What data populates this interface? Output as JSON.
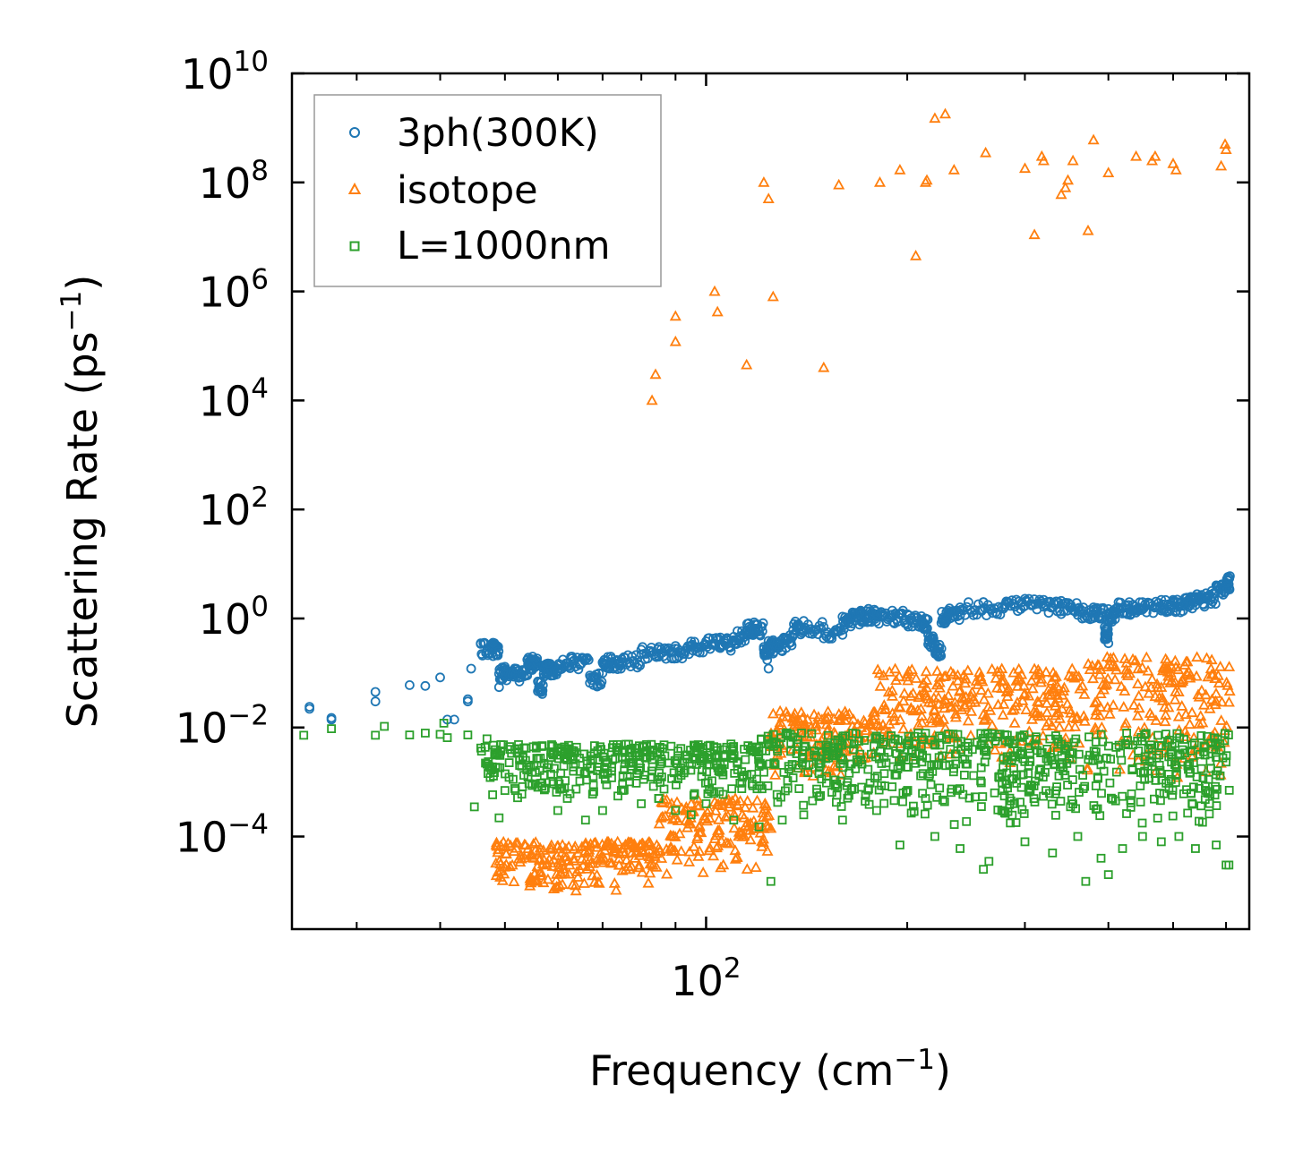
{
  "chart_data": {
    "type": "scatter",
    "xscale": "log",
    "yscale": "log",
    "xlim": [
      24,
      650
    ],
    "ylim": [
      2e-06,
      10000000000
    ],
    "xlabel": {
      "text": "Frequency (cm",
      "sup": "−1",
      "suffix": ")"
    },
    "ylabel": {
      "text": "Scattering Rate (ps",
      "sup": "−1",
      "suffix": ")"
    },
    "x_ticks": [
      {
        "value": 100,
        "base": "10",
        "exp": "2"
      }
    ],
    "y_ticks": [
      {
        "value": 0.0001,
        "base": "10",
        "exp": "−4"
      },
      {
        "value": 0.01,
        "base": "10",
        "exp": "−2"
      },
      {
        "value": 1,
        "base": "10",
        "exp": "0"
      },
      {
        "value": 100,
        "base": "10",
        "exp": "2"
      },
      {
        "value": 10000,
        "base": "10",
        "exp": "4"
      },
      {
        "value": 1000000,
        "base": "10",
        "exp": "6"
      },
      {
        "value": 100000000,
        "base": "10",
        "exp": "8"
      },
      {
        "value": 10000000000,
        "base": "10",
        "exp": "10"
      }
    ],
    "legend_position": "top-left",
    "series": [
      {
        "name": "3ph(300K)",
        "marker": "circle",
        "color": "#1f77b4",
        "points": [
          [
            25.5,
            0.022
          ],
          [
            25.5,
            0.024
          ],
          [
            27.5,
            0.014
          ],
          [
            27.5,
            0.015
          ],
          [
            32,
            0.03
          ],
          [
            32,
            0.045
          ],
          [
            36,
            0.06
          ],
          [
            38,
            0.058
          ],
          [
            40,
            0.083
          ],
          [
            41,
            0.014
          ],
          [
            42,
            0.014
          ],
          [
            44,
            0.03
          ],
          [
            44,
            0.033
          ],
          [
            44.5,
            0.12
          ],
          [
            46,
            0.35
          ],
          [
            48,
            0.36
          ],
          [
            49,
            0.055
          ],
          [
            50,
            0.13
          ],
          [
            52,
            0.12
          ],
          [
            54,
            0.09
          ],
          [
            55,
            0.2
          ],
          [
            56,
            0.07
          ],
          [
            57,
            0.06
          ],
          [
            58,
            0.15
          ],
          [
            60,
            0.11
          ],
          [
            63,
            0.2
          ],
          [
            67,
            0.09
          ],
          [
            70,
            0.1
          ],
          [
            72,
            0.2
          ],
          [
            75,
            0.15
          ],
          [
            80,
            0.22
          ],
          [
            85,
            0.3
          ],
          [
            90,
            0.28
          ],
          [
            95,
            0.32
          ],
          [
            100,
            0.38
          ],
          [
            105,
            0.45
          ],
          [
            110,
            0.4
          ],
          [
            115,
            0.6
          ],
          [
            118,
            0.85
          ],
          [
            122,
            0.3
          ],
          [
            124,
            0.12
          ],
          [
            126,
            0.4
          ],
          [
            130,
            0.25
          ],
          [
            135,
            0.5
          ],
          [
            140,
            0.9
          ],
          [
            150,
            0.7
          ],
          [
            160,
            0.5
          ],
          [
            165,
            1.1
          ],
          [
            170,
            1.3
          ],
          [
            175,
            1.5
          ],
          [
            180,
            1.2
          ],
          [
            190,
            1.4
          ],
          [
            200,
            1.2
          ],
          [
            210,
            1.1
          ],
          [
            215,
            0.5
          ],
          [
            220,
            0.35
          ],
          [
            225,
            0.28
          ],
          [
            230,
            1.4
          ],
          [
            240,
            1.6
          ],
          [
            260,
            2.0
          ],
          [
            280,
            1.8
          ],
          [
            300,
            2.3
          ],
          [
            320,
            2.2
          ],
          [
            340,
            2.1
          ],
          [
            360,
            1.5
          ],
          [
            380,
            1.6
          ],
          [
            395,
            0.7
          ],
          [
            400,
            0.35
          ],
          [
            410,
            1.5
          ],
          [
            430,
            2.0
          ],
          [
            450,
            2.0
          ],
          [
            480,
            2.2
          ],
          [
            500,
            2.2
          ],
          [
            520,
            2.3
          ],
          [
            540,
            2.5
          ],
          [
            560,
            2.9
          ],
          [
            580,
            3.2
          ],
          [
            600,
            4.5
          ],
          [
            608,
            6.0
          ]
        ]
      },
      {
        "name": "isotope",
        "marker": "triangle",
        "color": "#ff7f0e",
        "points": [
          [
            83,
            10000
          ],
          [
            84,
            30000
          ],
          [
            90,
            120000
          ],
          [
            90,
            350000
          ],
          [
            103,
            1000000
          ],
          [
            104,
            420000
          ],
          [
            115,
            45000
          ],
          [
            122,
            100000000
          ],
          [
            124,
            50000000
          ],
          [
            126,
            800000
          ],
          [
            150,
            40000
          ],
          [
            158,
            90000000
          ],
          [
            182,
            100000000
          ],
          [
            195,
            170000000
          ],
          [
            206,
            4500000
          ],
          [
            213,
            100000000
          ],
          [
            214,
            110000000
          ],
          [
            220,
            1500000000
          ],
          [
            228,
            1800000000
          ],
          [
            235,
            170000000
          ],
          [
            262,
            350000000
          ],
          [
            300,
            180000000
          ],
          [
            310,
            11000000
          ],
          [
            318,
            300000000
          ],
          [
            320,
            250000000
          ],
          [
            340,
            60000000
          ],
          [
            345,
            80000000
          ],
          [
            348,
            110000000
          ],
          [
            354,
            250000000
          ],
          [
            373,
            13000000
          ],
          [
            380,
            600000000
          ],
          [
            400,
            150000000
          ],
          [
            440,
            300000000
          ],
          [
            465,
            250000000
          ],
          [
            470,
            300000000
          ],
          [
            500,
            220000000
          ],
          [
            505,
            170000000
          ],
          [
            590,
            200000000
          ],
          [
            598,
            500000000
          ],
          [
            600,
            400000000
          ]
        ],
        "bands": [
          {
            "x_start": 48,
            "x_end": 85,
            "y_low": 1e-05,
            "y_high": 8e-05
          },
          {
            "x_start": 85,
            "x_end": 125,
            "y_low": 2e-05,
            "y_high": 0.0005
          },
          {
            "x_start": 125,
            "x_end": 180,
            "y_low": 0.001,
            "y_high": 0.02
          },
          {
            "x_start": 180,
            "x_end": 370,
            "y_low": 0.002,
            "y_high": 0.12
          },
          {
            "x_start": 370,
            "x_end": 608,
            "y_low": 0.001,
            "y_high": 0.2
          }
        ]
      },
      {
        "name": "L=1000nm",
        "marker": "square",
        "color": "#2ca02c",
        "points": [
          [
            25,
            0.0072
          ],
          [
            27.5,
            0.0095
          ],
          [
            32,
            0.0072
          ],
          [
            33,
            0.0105
          ],
          [
            36,
            0.0073
          ],
          [
            38,
            0.0079
          ],
          [
            40,
            0.0075
          ],
          [
            40.5,
            0.012
          ],
          [
            41,
            0.0065
          ],
          [
            44,
            0.0073
          ],
          [
            45,
            0.00035
          ],
          [
            47,
            0.0062
          ],
          [
            49,
            0.00022
          ],
          [
            50,
            0.0007
          ],
          [
            53,
            0.0006
          ],
          [
            56,
            0.0008
          ],
          [
            60,
            0.0003
          ],
          [
            62,
            0.0005
          ],
          [
            66,
            0.0002
          ],
          [
            70,
            0.0003
          ],
          [
            75,
            0.0009
          ],
          [
            80,
            0.0004
          ],
          [
            85,
            0.0005
          ],
          [
            90,
            0.0003
          ],
          [
            95,
            0.00025
          ],
          [
            100,
            0.0004
          ],
          [
            110,
            0.0002
          ],
          [
            120,
            0.00015
          ],
          [
            125,
            1.5e-05
          ],
          [
            130,
            0.0002
          ],
          [
            140,
            0.00025
          ],
          [
            160,
            0.0002
          ],
          [
            180,
            0.0003
          ],
          [
            195,
            7e-05
          ],
          [
            220,
            0.0001
          ],
          [
            240,
            6e-05
          ],
          [
            260,
            2.5e-05
          ],
          [
            265,
            3.5e-05
          ],
          [
            300,
            8e-05
          ],
          [
            330,
            5e-05
          ],
          [
            360,
            0.0001
          ],
          [
            370,
            1.5e-05
          ],
          [
            390,
            4e-05
          ],
          [
            400,
            2e-05
          ],
          [
            420,
            6e-05
          ],
          [
            450,
            0.0001
          ],
          [
            480,
            8e-05
          ],
          [
            510,
            0.0001
          ],
          [
            540,
            6e-05
          ],
          [
            580,
            7e-05
          ],
          [
            600,
            3e-05
          ],
          [
            606,
            3e-05
          ]
        ],
        "bands": [
          {
            "x_start": 46,
            "x_end": 120,
            "y_low": 0.0005,
            "y_high": 0.005
          },
          {
            "x_start": 120,
            "x_end": 180,
            "y_low": 0.0003,
            "y_high": 0.008
          },
          {
            "x_start": 180,
            "x_end": 608,
            "y_low": 0.00015,
            "y_high": 0.008
          }
        ]
      }
    ]
  }
}
